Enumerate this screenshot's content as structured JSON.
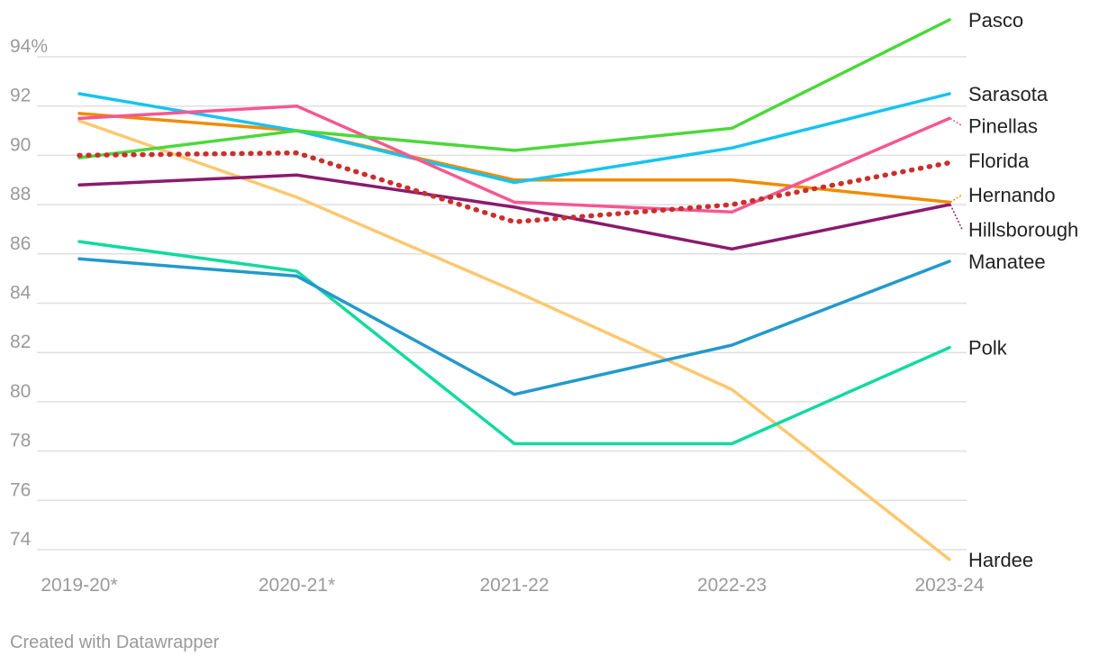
{
  "chart_data": {
    "type": "line",
    "x": [
      "2019-20*",
      "2020-21*",
      "2021-22",
      "2022-23",
      "2023-24"
    ],
    "y_ticks": [
      "74",
      "76",
      "78",
      "80",
      "82",
      "84",
      "86",
      "88",
      "90",
      "92",
      "94%"
    ],
    "y_tick_values": [
      74,
      76,
      78,
      80,
      82,
      84,
      86,
      88,
      90,
      92,
      94
    ],
    "ylim": [
      73.2,
      96.3
    ],
    "grid": true,
    "legend": "direct labels at line ends",
    "series": [
      {
        "name": "Pasco",
        "color": "#4cd83a",
        "dash": false,
        "values": [
          89.9,
          91.0,
          90.2,
          91.1,
          95.5
        ],
        "label_value": 95.5
      },
      {
        "name": "Sarasota",
        "color": "#18c3f0",
        "dash": false,
        "values": [
          92.5,
          91.0,
          88.9,
          90.3,
          92.5
        ],
        "label_value": 92.5
      },
      {
        "name": "Pinellas",
        "color": "#f55891",
        "dash": false,
        "values": [
          91.5,
          92.0,
          88.1,
          87.7,
          91.5
        ],
        "label_value": 91.2
      },
      {
        "name": "Florida",
        "color": "#c9302c",
        "dash": true,
        "values": [
          90.0,
          90.1,
          87.3,
          88.0,
          89.7
        ],
        "label_value": 89.8
      },
      {
        "name": "Hernando",
        "color": "#f08c00",
        "dash": false,
        "values": [
          91.7,
          91.0,
          89.0,
          89.0,
          88.1
        ],
        "label_value": 88.4
      },
      {
        "name": "Hillsborough",
        "color": "#8b1a6e",
        "dash": false,
        "values": [
          88.8,
          89.2,
          87.9,
          86.2,
          88.0
        ],
        "label_value": 87.0
      },
      {
        "name": "Manatee",
        "color": "#2399cc",
        "dash": false,
        "values": [
          85.8,
          85.1,
          80.3,
          82.3,
          85.7
        ],
        "label_value": 85.7
      },
      {
        "name": "Polk",
        "color": "#14d9a0",
        "dash": false,
        "values": [
          86.5,
          85.3,
          78.3,
          78.3,
          82.2
        ],
        "label_value": 82.2
      },
      {
        "name": "Hardee",
        "color": "#fcc870",
        "dash": false,
        "values": [
          91.4,
          88.3,
          84.5,
          80.5,
          73.6
        ],
        "label_value": 73.6
      }
    ]
  },
  "footer": {
    "credit": "Created with Datawrapper"
  },
  "colors": {
    "grid": "#e0e0e0",
    "axis_text": "#9a9a9a",
    "label_text": "#222222"
  }
}
